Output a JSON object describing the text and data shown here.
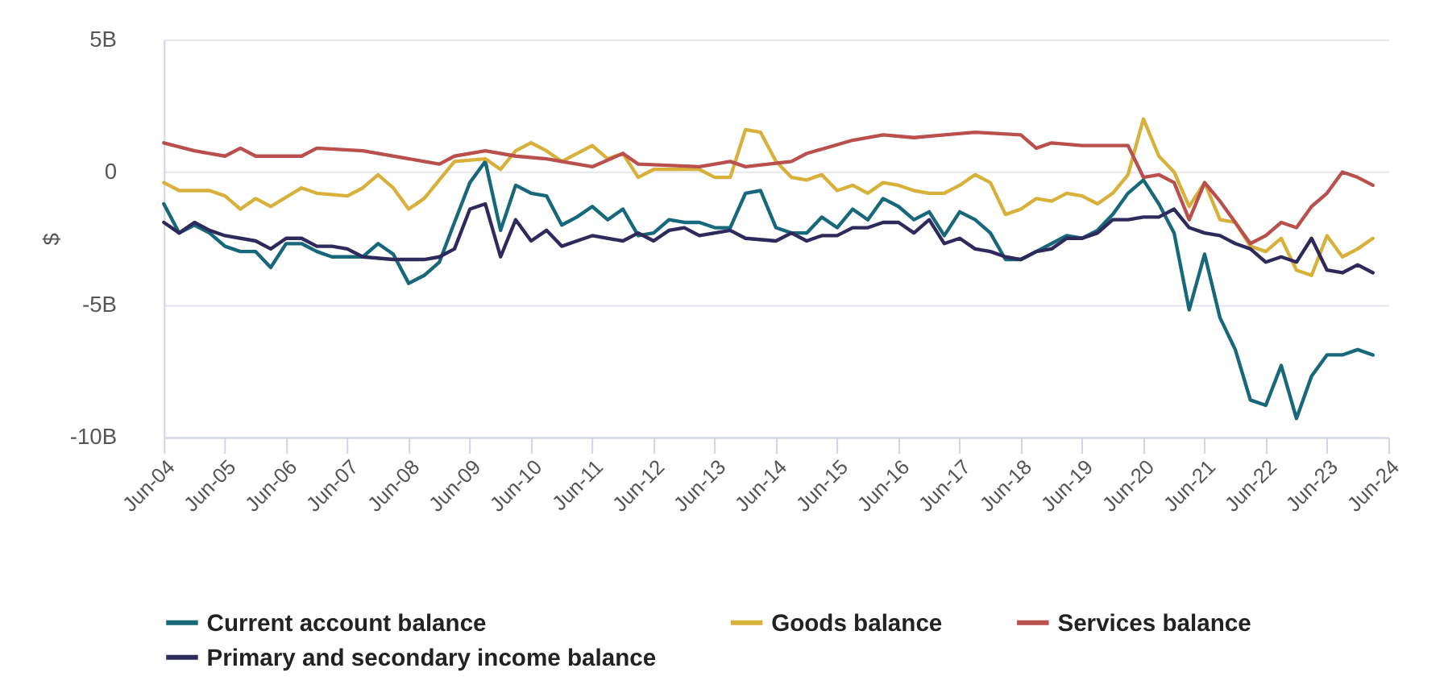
{
  "chart_data": {
    "type": "line",
    "ylabel": "$",
    "legend": "bottom",
    "grid": "y",
    "xlim": [
      "2004-06",
      "2024-06"
    ],
    "xticks": [
      {
        "value": "2004-06",
        "label": "Jun-04"
      },
      {
        "value": "2005-06",
        "label": "Jun-05"
      },
      {
        "value": "2006-06",
        "label": "Jun-06"
      },
      {
        "value": "2007-06",
        "label": "Jun-07"
      },
      {
        "value": "2008-06",
        "label": "Jun-08"
      },
      {
        "value": "2009-06",
        "label": "Jun-09"
      },
      {
        "value": "2010-06",
        "label": "Jun-10"
      },
      {
        "value": "2011-06",
        "label": "Jun-11"
      },
      {
        "value": "2012-06",
        "label": "Jun-12"
      },
      {
        "value": "2013-06",
        "label": "Jun-13"
      },
      {
        "value": "2014-06",
        "label": "Jun-14"
      },
      {
        "value": "2015-06",
        "label": "Jun-15"
      },
      {
        "value": "2016-06",
        "label": "Jun-16"
      },
      {
        "value": "2017-06",
        "label": "Jun-17"
      },
      {
        "value": "2018-06",
        "label": "Jun-18"
      },
      {
        "value": "2019-06",
        "label": "Jun-19"
      },
      {
        "value": "2020-06",
        "label": "Jun-20"
      },
      {
        "value": "2021-06",
        "label": "Jun-21"
      },
      {
        "value": "2022-06",
        "label": "Jun-22"
      },
      {
        "value": "2023-06",
        "label": "Jun-23"
      },
      {
        "value": "2024-06",
        "label": "Jun-24"
      }
    ],
    "ylim": [
      -10,
      5
    ],
    "yticks": [
      {
        "value": 5,
        "label": "5B"
      },
      0,
      {
        "value": -5,
        "label": "-5B"
      },
      {
        "value": -10,
        "label": "-10B"
      }
    ],
    "series": [
      {
        "name": "Current account balance",
        "color": "#16687a",
        "x": [
          "2004-06",
          "2004-09",
          "2004-12",
          "2005-03",
          "2005-06",
          "2005-09",
          "2005-12",
          "2006-03",
          "2006-06",
          "2006-09",
          "2006-12",
          "2007-03",
          "2007-06",
          "2007-09",
          "2007-12",
          "2008-03",
          "2008-06",
          "2008-09",
          "2008-12",
          "2009-03",
          "2009-06",
          "2009-09",
          "2009-12",
          "2010-03",
          "2010-06",
          "2010-09",
          "2010-12",
          "2011-03",
          "2011-06",
          "2011-09",
          "2011-12",
          "2012-03",
          "2012-06",
          "2012-09",
          "2012-12",
          "2013-03",
          "2013-06",
          "2013-09",
          "2013-12",
          "2014-03",
          "2014-06",
          "2014-09",
          "2014-12",
          "2015-03",
          "2015-06",
          "2015-09",
          "2015-12",
          "2016-03",
          "2016-06",
          "2016-09",
          "2016-12",
          "2017-03",
          "2017-06",
          "2017-09",
          "2017-12",
          "2018-03",
          "2018-06",
          "2018-09",
          "2018-12",
          "2019-03",
          "2019-06",
          "2019-09",
          "2019-12",
          "2020-03",
          "2020-06",
          "2020-09",
          "2020-12",
          "2021-03",
          "2021-06",
          "2021-09",
          "2021-12",
          "2022-03",
          "2022-06",
          "2022-09",
          "2022-12",
          "2023-03",
          "2023-06",
          "2023-09",
          "2023-12",
          "2024-03"
        ],
        "values": [
          -1.2,
          -2.3,
          -2.0,
          -2.3,
          -2.8,
          -3.0,
          -3.0,
          -3.6,
          -2.7,
          -2.7,
          -3.0,
          -3.2,
          -3.2,
          -3.2,
          -2.7,
          -3.1,
          -4.2,
          -3.9,
          -3.4,
          -1.9,
          -0.4,
          0.4,
          -2.2,
          -0.5,
          -0.8,
          -0.9,
          -2.0,
          -1.7,
          -1.3,
          -1.8,
          -1.4,
          -2.4,
          -2.3,
          -1.8,
          -1.9,
          -1.9,
          -2.1,
          -2.1,
          -0.8,
          -0.7,
          -2.1,
          -2.3,
          -2.3,
          -1.7,
          -2.1,
          -1.4,
          -1.8,
          -1.0,
          -1.3,
          -1.8,
          -1.5,
          -2.4,
          -1.5,
          -1.8,
          -2.3,
          -3.3,
          -3.3,
          -3.0,
          -2.7,
          -2.4,
          -2.5,
          -2.2,
          -1.6,
          -0.8,
          -0.3,
          -1.2,
          -2.3,
          -5.2,
          -3.1,
          -5.5,
          -6.7,
          -8.6,
          -8.8,
          -7.3,
          -9.3,
          -7.7,
          -6.9,
          -6.9,
          -6.7,
          -6.9
        ]
      },
      {
        "name": "Goods balance",
        "color": "#d8b13b",
        "x": [
          "2004-06",
          "2004-09",
          "2005-03",
          "2005-06",
          "2005-09",
          "2005-12",
          "2006-03",
          "2006-09",
          "2006-12",
          "2007-06",
          "2007-09",
          "2007-12",
          "2008-03",
          "2008-06",
          "2008-09",
          "2009-03",
          "2009-09",
          "2009-12",
          "2010-03",
          "2010-06",
          "2010-09",
          "2010-12",
          "2011-06",
          "2011-09",
          "2011-12",
          "2012-03",
          "2012-06",
          "2013-03",
          "2013-06",
          "2013-09",
          "2013-12",
          "2014-03",
          "2014-06",
          "2014-09",
          "2014-12",
          "2015-03",
          "2015-06",
          "2015-09",
          "2015-12",
          "2016-03",
          "2016-06",
          "2016-09",
          "2016-12",
          "2017-03",
          "2017-06",
          "2017-09",
          "2017-12",
          "2018-03",
          "2018-06",
          "2018-09",
          "2018-12",
          "2019-03",
          "2019-06",
          "2019-09",
          "2019-12",
          "2020-03",
          "2020-06",
          "2020-09",
          "2020-12",
          "2021-03",
          "2021-06",
          "2021-09",
          "2021-12",
          "2022-03",
          "2022-06",
          "2022-09",
          "2022-12",
          "2023-03",
          "2023-06",
          "2023-09",
          "2023-12",
          "2024-03"
        ],
        "values": [
          -0.4,
          -0.7,
          -0.7,
          -0.9,
          -1.4,
          -1.0,
          -1.3,
          -0.6,
          -0.8,
          -0.9,
          -0.6,
          -0.1,
          -0.6,
          -1.4,
          -1.0,
          0.4,
          0.5,
          0.1,
          0.8,
          1.1,
          0.8,
          0.4,
          1.0,
          0.5,
          0.7,
          -0.2,
          0.1,
          0.1,
          -0.2,
          -0.2,
          1.6,
          1.5,
          0.4,
          -0.2,
          -0.3,
          -0.1,
          -0.7,
          -0.5,
          -0.8,
          -0.4,
          -0.5,
          -0.7,
          -0.8,
          -0.8,
          -0.5,
          -0.1,
          -0.4,
          -1.6,
          -1.4,
          -1.0,
          -1.1,
          -0.8,
          -0.9,
          -1.2,
          -0.8,
          -0.1,
          2.0,
          0.6,
          0.0,
          -1.3,
          -0.4,
          -1.8,
          -1.9,
          -2.8,
          -3.0,
          -2.5,
          -3.7,
          -3.9,
          -2.4,
          -3.2,
          -2.9,
          -2.5
        ]
      },
      {
        "name": "Services balance",
        "color": "#b9504e",
        "x": [
          "2004-06",
          "2004-12",
          "2005-06",
          "2005-09",
          "2005-12",
          "2006-09",
          "2006-12",
          "2007-09",
          "2008-09",
          "2008-12",
          "2009-03",
          "2009-09",
          "2010-03",
          "2010-09",
          "2011-06",
          "2011-12",
          "2012-03",
          "2013-03",
          "2013-09",
          "2013-12",
          "2014-09",
          "2014-12",
          "2015-09",
          "2016-03",
          "2016-09",
          "2017-03",
          "2017-09",
          "2018-06",
          "2018-09",
          "2018-12",
          "2019-06",
          "2020-03",
          "2020-06",
          "2020-09",
          "2020-12",
          "2021-03",
          "2021-06",
          "2021-09",
          "2022-03",
          "2022-06",
          "2022-09",
          "2022-12",
          "2023-03",
          "2023-06",
          "2023-09",
          "2023-12",
          "2024-03"
        ],
        "values": [
          1.1,
          0.8,
          0.6,
          0.9,
          0.6,
          0.6,
          0.9,
          0.8,
          0.4,
          0.3,
          0.6,
          0.8,
          0.6,
          0.5,
          0.2,
          0.7,
          0.3,
          0.2,
          0.4,
          0.2,
          0.4,
          0.7,
          1.2,
          1.4,
          1.3,
          1.4,
          1.5,
          1.4,
          0.9,
          1.1,
          1.0,
          1.0,
          -0.2,
          -0.1,
          -0.4,
          -1.8,
          -0.4,
          -1.1,
          -2.7,
          -2.4,
          -1.9,
          -2.1,
          -1.3,
          -0.8,
          0.0,
          -0.2,
          -0.5
        ]
      },
      {
        "name": "Primary and secondary income balance",
        "color": "#2e2b5c",
        "x": [
          "2004-06",
          "2004-09",
          "2004-12",
          "2005-03",
          "2005-06",
          "2005-12",
          "2006-03",
          "2006-06",
          "2006-09",
          "2006-12",
          "2007-03",
          "2007-06",
          "2007-09",
          "2008-03",
          "2008-09",
          "2008-12",
          "2009-03",
          "2009-06",
          "2009-09",
          "2009-12",
          "2010-03",
          "2010-06",
          "2010-09",
          "2010-12",
          "2011-03",
          "2011-06",
          "2011-12",
          "2012-03",
          "2012-06",
          "2012-09",
          "2012-12",
          "2013-03",
          "2013-09",
          "2013-12",
          "2014-06",
          "2014-09",
          "2014-12",
          "2015-03",
          "2015-06",
          "2015-09",
          "2015-12",
          "2016-03",
          "2016-06",
          "2016-09",
          "2016-12",
          "2017-03",
          "2017-06",
          "2017-09",
          "2017-12",
          "2018-03",
          "2018-06",
          "2018-09",
          "2018-12",
          "2019-03",
          "2019-06",
          "2019-09",
          "2019-12",
          "2020-03",
          "2020-06",
          "2020-09",
          "2020-12",
          "2021-03",
          "2021-06",
          "2021-09",
          "2021-12",
          "2022-03",
          "2022-06",
          "2022-09",
          "2022-12",
          "2023-03",
          "2023-06",
          "2023-09",
          "2023-12",
          "2024-03"
        ],
        "values": [
          -1.9,
          -2.3,
          -1.9,
          -2.2,
          -2.4,
          -2.6,
          -2.9,
          -2.5,
          -2.5,
          -2.8,
          -2.8,
          -2.9,
          -3.2,
          -3.3,
          -3.3,
          -3.2,
          -2.9,
          -1.4,
          -1.2,
          -3.2,
          -1.8,
          -2.6,
          -2.2,
          -2.8,
          -2.6,
          -2.4,
          -2.6,
          -2.3,
          -2.6,
          -2.2,
          -2.1,
          -2.4,
          -2.2,
          -2.5,
          -2.6,
          -2.3,
          -2.6,
          -2.4,
          -2.4,
          -2.1,
          -2.1,
          -1.9,
          -1.9,
          -2.3,
          -1.8,
          -2.7,
          -2.5,
          -2.9,
          -3.0,
          -3.2,
          -3.3,
          -3.0,
          -2.9,
          -2.5,
          -2.5,
          -2.3,
          -1.8,
          -1.8,
          -1.7,
          -1.7,
          -1.4,
          -2.1,
          -2.3,
          -2.4,
          -2.7,
          -2.9,
          -3.4,
          -3.2,
          -3.4,
          -2.5,
          -3.7,
          -3.8,
          -3.5,
          -3.8
        ]
      }
    ]
  }
}
